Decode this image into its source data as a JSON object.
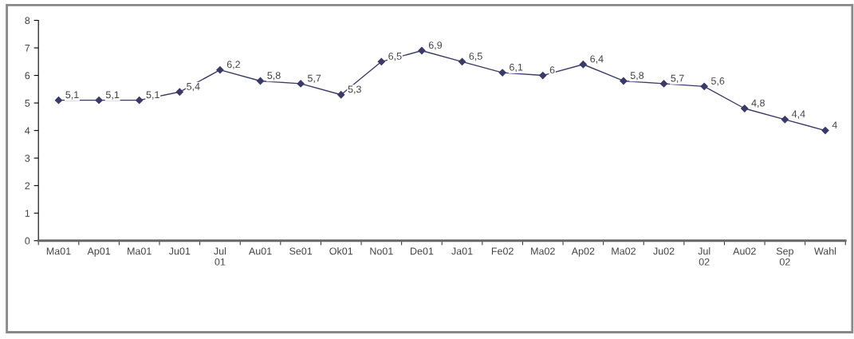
{
  "chart_data": {
    "type": "line",
    "categories": [
      "Ma01",
      "Ap01",
      "Ma01",
      "Ju01",
      "Jul\n01",
      "Au01",
      "Se01",
      "Ok01",
      "No01",
      "De01",
      "Ja01",
      "Fe02",
      "Ma02",
      "Ap02",
      "Ma02",
      "Ju02",
      "Jul\n02",
      "Au02",
      "Sep\n02",
      "Wahl"
    ],
    "series": [
      {
        "color": "#3a3a6a",
        "values": [
          5.1,
          5.1,
          5.1,
          5.4,
          6.2,
          5.8,
          5.7,
          5.3,
          6.5,
          6.9,
          6.5,
          6.1,
          6,
          6.4,
          5.8,
          5.7,
          5.6,
          4.8,
          4.4,
          4
        ],
        "value_labels": [
          "5,1",
          "5,1",
          "5,1",
          "5,4",
          "6,2",
          "5,8",
          "5,7",
          "5,3",
          "6,5",
          "6,9",
          "6,5",
          "6,1",
          "6",
          "6,4",
          "5,8",
          "5,7",
          "5,6",
          "4,8",
          "4,4",
          "4"
        ]
      }
    ],
    "ylim": [
      0,
      8
    ],
    "yticks": [
      0,
      1,
      2,
      3,
      4,
      5,
      6,
      7,
      8
    ],
    "marker": "diamond",
    "line_style": "solid",
    "grid": false,
    "legend": false
  }
}
